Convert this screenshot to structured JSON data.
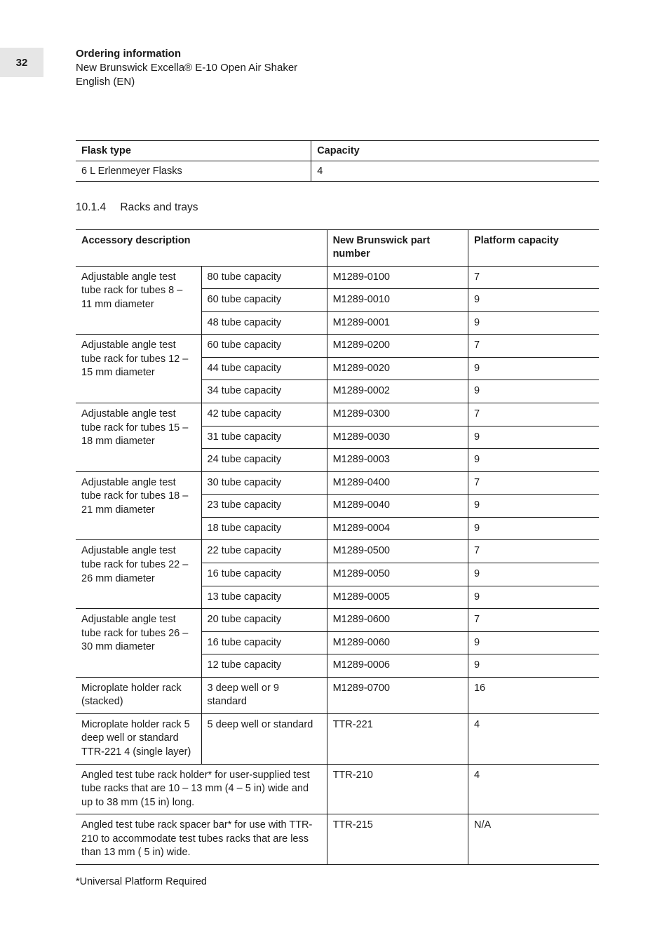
{
  "page": {
    "number": "32",
    "header": {
      "title": "Ordering information",
      "line1": "New Brunswick Excella® E-10 Open Air Shaker",
      "line2": "English (EN)"
    }
  },
  "flask_table": {
    "headers": [
      "Flask type",
      "Capacity"
    ],
    "rows": [
      {
        "type": "6 L Erlenmeyer Flasks",
        "capacity": "4"
      }
    ]
  },
  "section": {
    "number": "10.1.4",
    "title": "Racks and trays"
  },
  "accessory_table": {
    "headers": {
      "desc": "Accessory description",
      "part": "New Brunswick part number",
      "plat": "Platform capacity"
    },
    "groups": [
      {
        "desc": "Adjustable angle test tube rack for tubes 8 – 11 mm diameter",
        "rows": [
          {
            "cap": "80 tube capacity",
            "part": "M1289-0100",
            "plat": "7"
          },
          {
            "cap": "60 tube capacity",
            "part": "M1289-0010",
            "plat": "9"
          },
          {
            "cap": "48 tube capacity",
            "part": "M1289-0001",
            "plat": "9"
          }
        ]
      },
      {
        "desc": "Adjustable angle test tube rack for tubes 12 – 15 mm diameter",
        "rows": [
          {
            "cap": "60 tube capacity",
            "part": "M1289-0200",
            "plat": "7"
          },
          {
            "cap": "44 tube capacity",
            "part": "M1289-0020",
            "plat": "9"
          },
          {
            "cap": "34 tube capacity",
            "part": "M1289-0002",
            "plat": "9"
          }
        ]
      },
      {
        "desc": "Adjustable angle test tube rack for tubes 15 – 18 mm diameter",
        "rows": [
          {
            "cap": "42 tube capacity",
            "part": "M1289-0300",
            "plat": "7"
          },
          {
            "cap": "31 tube capacity",
            "part": "M1289-0030",
            "plat": "9"
          },
          {
            "cap": "24 tube capacity",
            "part": "M1289-0003",
            "plat": "9"
          }
        ]
      },
      {
        "desc": "Adjustable angle test tube rack for tubes 18 – 21 mm diameter",
        "rows": [
          {
            "cap": "30 tube capacity",
            "part": "M1289-0400",
            "plat": "7"
          },
          {
            "cap": "23 tube capacity",
            "part": "M1289-0040",
            "plat": "9"
          },
          {
            "cap": "18 tube capacity",
            "part": "M1289-0004",
            "plat": "9"
          }
        ]
      },
      {
        "desc": "Adjustable angle test tube rack for tubes 22 – 26 mm diameter",
        "rows": [
          {
            "cap": "22 tube capacity",
            "part": "M1289-0500",
            "plat": "7"
          },
          {
            "cap": "16 tube capacity",
            "part": "M1289-0050",
            "plat": "9"
          },
          {
            "cap": "13 tube capacity",
            "part": "M1289-0005",
            "plat": "9"
          }
        ]
      },
      {
        "desc": "Adjustable angle test tube rack for tubes 26 – 30 mm diameter",
        "rows": [
          {
            "cap": "20 tube capacity",
            "part": "M1289-0600",
            "plat": "7"
          },
          {
            "cap": "16 tube capacity",
            "part": "M1289-0060",
            "plat": "9"
          },
          {
            "cap": "12 tube capacity",
            "part": "M1289-0006",
            "plat": "9"
          }
        ]
      }
    ],
    "single_rows": [
      {
        "desc": "Microplate holder rack (stacked)",
        "cap": "3 deep well or 9 standard",
        "part": "M1289-0700",
        "plat": "16"
      },
      {
        "desc": "Microplate holder rack 5 deep well or standard TTR-221 4 (single layer)",
        "cap": "5 deep well or standard",
        "part": "TTR-221",
        "plat": "4"
      }
    ],
    "spanning_rows": [
      {
        "desc": "Angled test tube rack holder* for user-supplied test tube racks that are 10 – 13 mm (4 – 5 in) wide and up to 38 mm (15 in) long.",
        "part": "TTR-210",
        "plat": "4"
      },
      {
        "desc": "Angled test tube rack spacer bar* for use with TTR-210 to accommodate test tubes racks that are less than 13 mm ( 5 in) wide.",
        "part": "TTR-215",
        "plat": "N/A"
      }
    ],
    "footnote": "*Universal Platform Required"
  }
}
